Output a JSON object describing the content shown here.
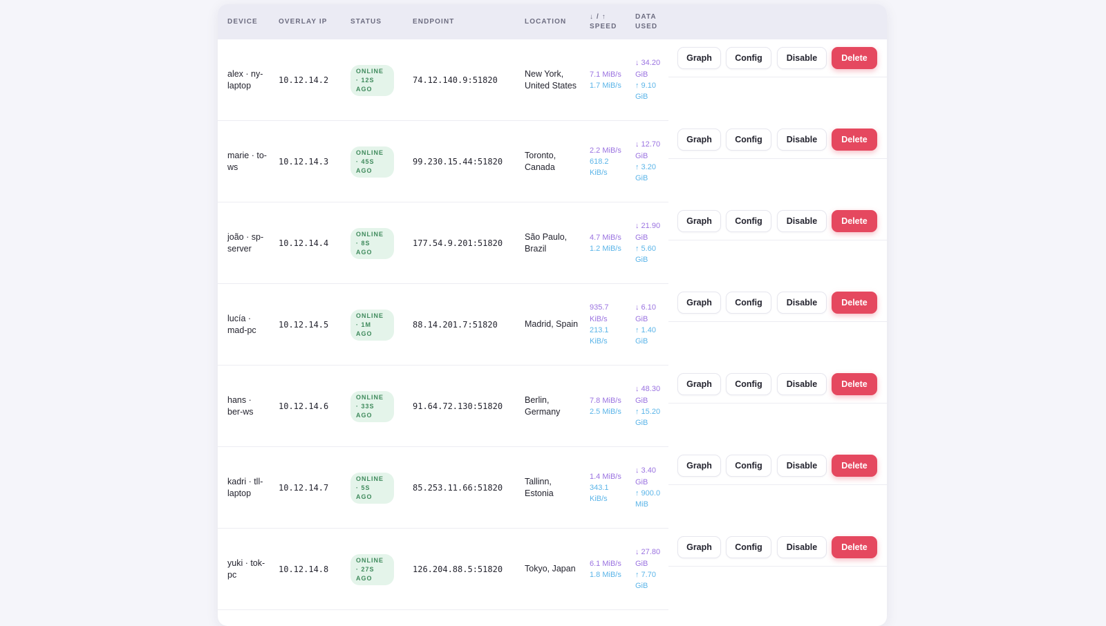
{
  "table": {
    "headers": {
      "device": "DEVICE",
      "overlay_ip": "OVERLAY IP",
      "status": "STATUS",
      "endpoint": "ENDPOINT",
      "location": "LOCATION",
      "speed_1": "↓ / ↑",
      "speed_2": "SPEED",
      "data_1": "DATA",
      "data_2": "USED"
    },
    "actions": {
      "graph": "Graph",
      "config": "Config",
      "disable": "Disable",
      "delete": "Delete"
    },
    "rows": [
      {
        "device": "alex · ny-laptop",
        "ip": "10.12.14.2",
        "status": "ONLINE · 12S AGO",
        "endpoint": "74.12.140.9:51820",
        "location": "New York, United States",
        "speed_down": "7.1 MiB/s",
        "speed_up": "1.7 MiB/s",
        "data_down": "↓ 34.20 GiB",
        "data_up": "↑ 9.10 GiB"
      },
      {
        "device": "marie · to-ws",
        "ip": "10.12.14.3",
        "status": "ONLINE · 45S AGO",
        "endpoint": "99.230.15.44:51820",
        "location": "Toronto, Canada",
        "speed_down": "2.2 MiB/s",
        "speed_up": "618.2 KiB/s",
        "data_down": "↓ 12.70 GiB",
        "data_up": "↑ 3.20 GiB"
      },
      {
        "device": "joão · sp-server",
        "ip": "10.12.14.4",
        "status": "ONLINE · 8S AGO",
        "endpoint": "177.54.9.201:51820",
        "location": "São Paulo, Brazil",
        "speed_down": "4.7 MiB/s",
        "speed_up": "1.2 MiB/s",
        "data_down": "↓ 21.90 GiB",
        "data_up": "↑ 5.60 GiB"
      },
      {
        "device": "lucía · mad-pc",
        "ip": "10.12.14.5",
        "status": "ONLINE · 1M AGO",
        "endpoint": "88.14.201.7:51820",
        "location": "Madrid, Spain",
        "speed_down": "935.7 KiB/s",
        "speed_up": "213.1 KiB/s",
        "data_down": "↓ 6.10 GiB",
        "data_up": "↑ 1.40 GiB"
      },
      {
        "device": "hans · ber-ws",
        "ip": "10.12.14.6",
        "status": "ONLINE · 33S AGO",
        "endpoint": "91.64.72.130:51820",
        "location": "Berlin, Germany",
        "speed_down": "7.8 MiB/s",
        "speed_up": "2.5 MiB/s",
        "data_down": "↓ 48.30 GiB",
        "data_up": "↑ 15.20 GiB"
      },
      {
        "device": "kadri · tll-laptop",
        "ip": "10.12.14.7",
        "status": "ONLINE · 5S AGO",
        "endpoint": "85.253.11.66:51820",
        "location": "Tallinn, Estonia",
        "speed_down": "1.4 MiB/s",
        "speed_up": "343.1 KiB/s",
        "data_down": "↓ 3.40 GiB",
        "data_up": "↑ 900.0 MiB"
      },
      {
        "device": "yuki · tok-pc",
        "ip": "10.12.14.8",
        "status": "ONLINE · 27S AGO",
        "endpoint": "126.204.88.5:51820",
        "location": "Tokyo, Japan",
        "speed_down": "6.1 MiB/s",
        "speed_up": "1.8 MiB/s",
        "data_down": "↓ 27.80 GiB",
        "data_up": "↑ 7.70 GiB"
      }
    ]
  },
  "colors": {
    "accent_delete": "#e5485f",
    "status_online_bg": "#e4f4ea",
    "status_online_text": "#3f8a5c",
    "speed_down": "#9a72e0",
    "speed_up": "#5ab4e8"
  }
}
